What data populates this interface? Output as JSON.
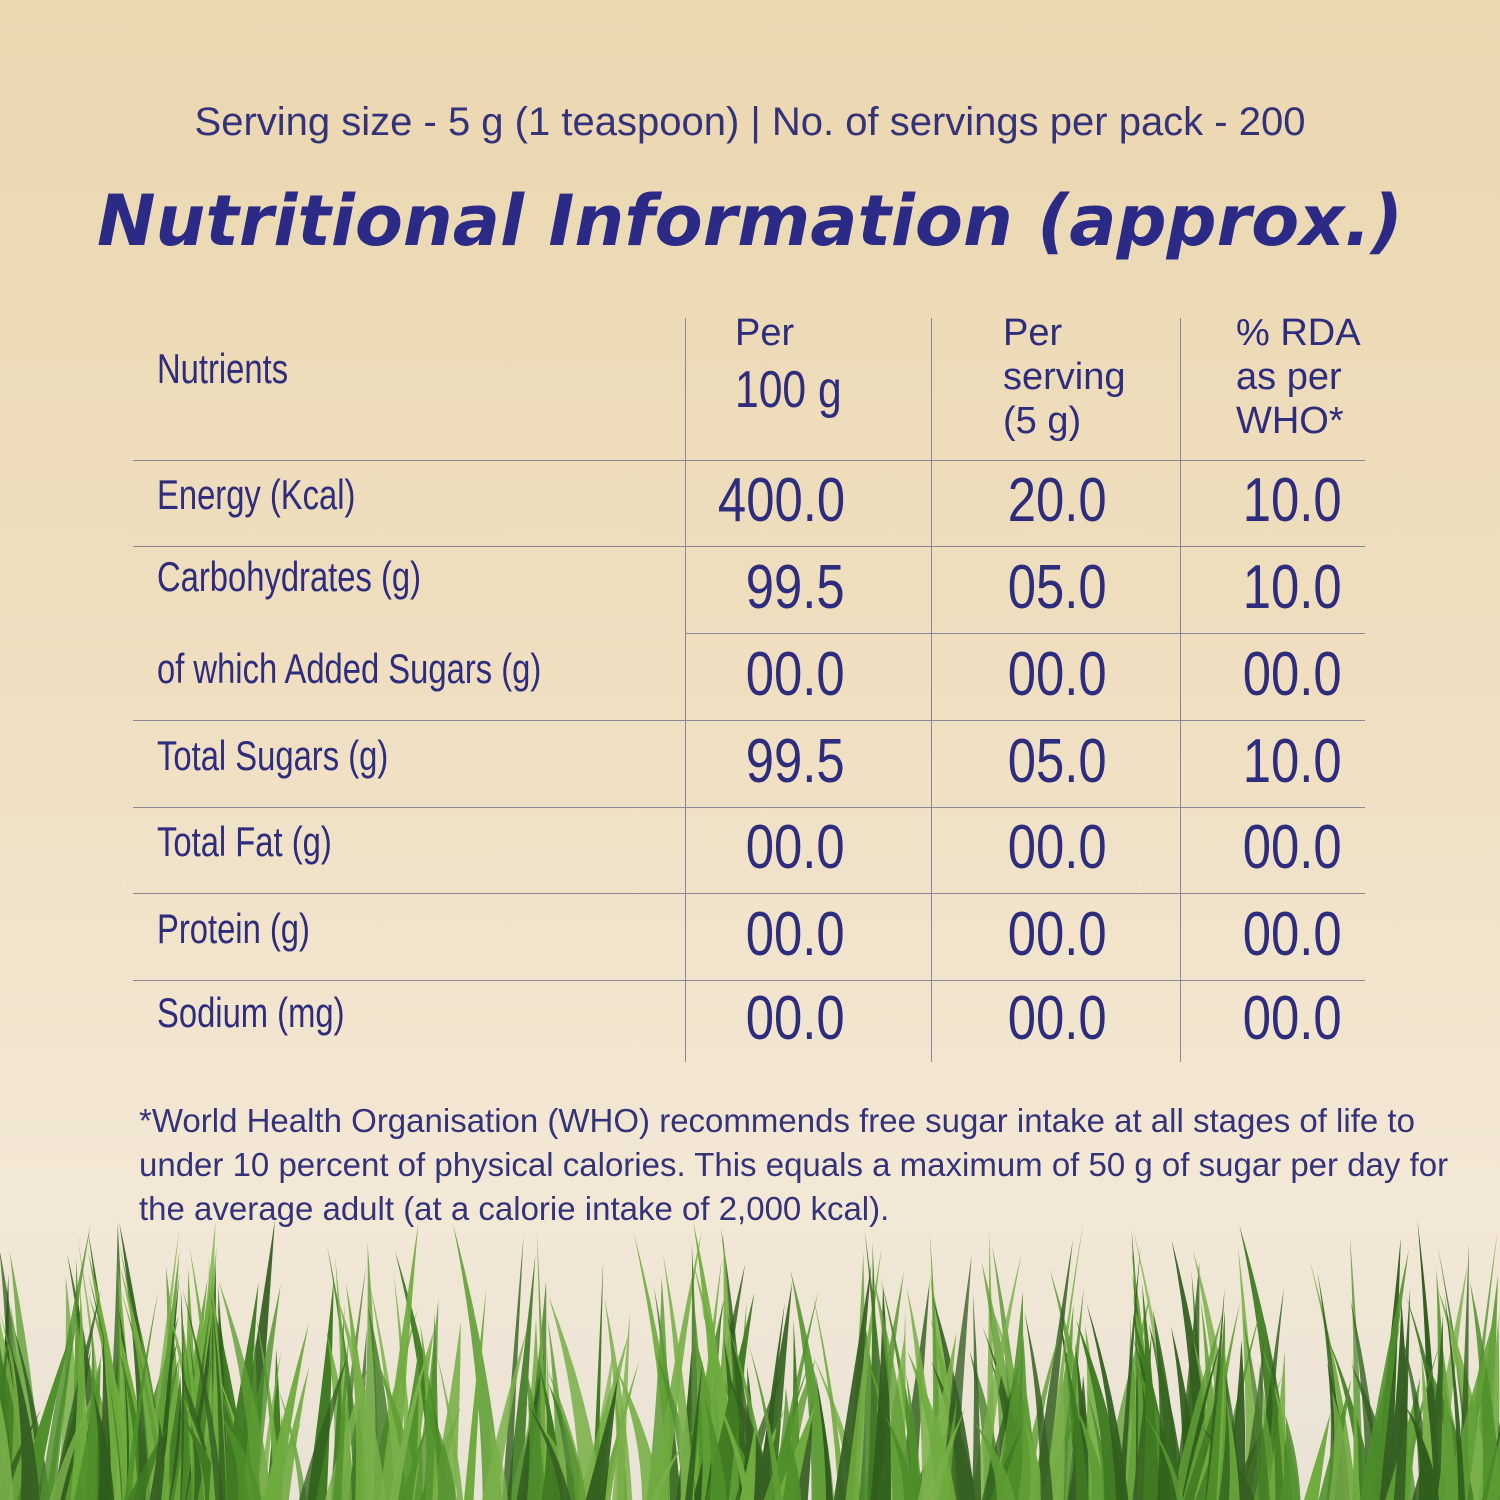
{
  "header": {
    "serving": "Serving size - 5 g (1 teaspoon) | No. of servings per pack - 200",
    "title": "Nutritional Information (approx.)"
  },
  "table": {
    "headers": [
      [
        "Nutrients"
      ],
      [
        "Per",
        "100 g"
      ],
      [
        "Per",
        "serving",
        "(5 g)"
      ],
      [
        "% RDA",
        "as per",
        "WHO*"
      ]
    ],
    "rows": [
      [
        "Energy (Kcal)",
        "400.0",
        "20.0",
        "10.0"
      ],
      [
        "Carbohydrates (g)",
        "99.5",
        "05.0",
        "10.0"
      ],
      [
        "of which Added Sugars (g)",
        "00.0",
        "00.0",
        "00.0"
      ],
      [
        "Total Sugars (g)",
        "99.5",
        "05.0",
        "10.0"
      ],
      [
        "Total Fat (g)",
        "00.0",
        "00.0",
        "00.0"
      ],
      [
        "Protein (g)",
        "00.0",
        "00.0",
        "00.0"
      ],
      [
        "Sodium (mg)",
        "00.0",
        "00.0",
        "00.0"
      ]
    ]
  },
  "footnote": [
    "*World Health Organisation (WHO) recommends free sugar intake at all stages of life to",
    "under 10 percent of physical calories. This equals a maximum of 50 g of sugar per day for",
    "the average adult (at a calorie intake of 2,000 kcal)."
  ]
}
